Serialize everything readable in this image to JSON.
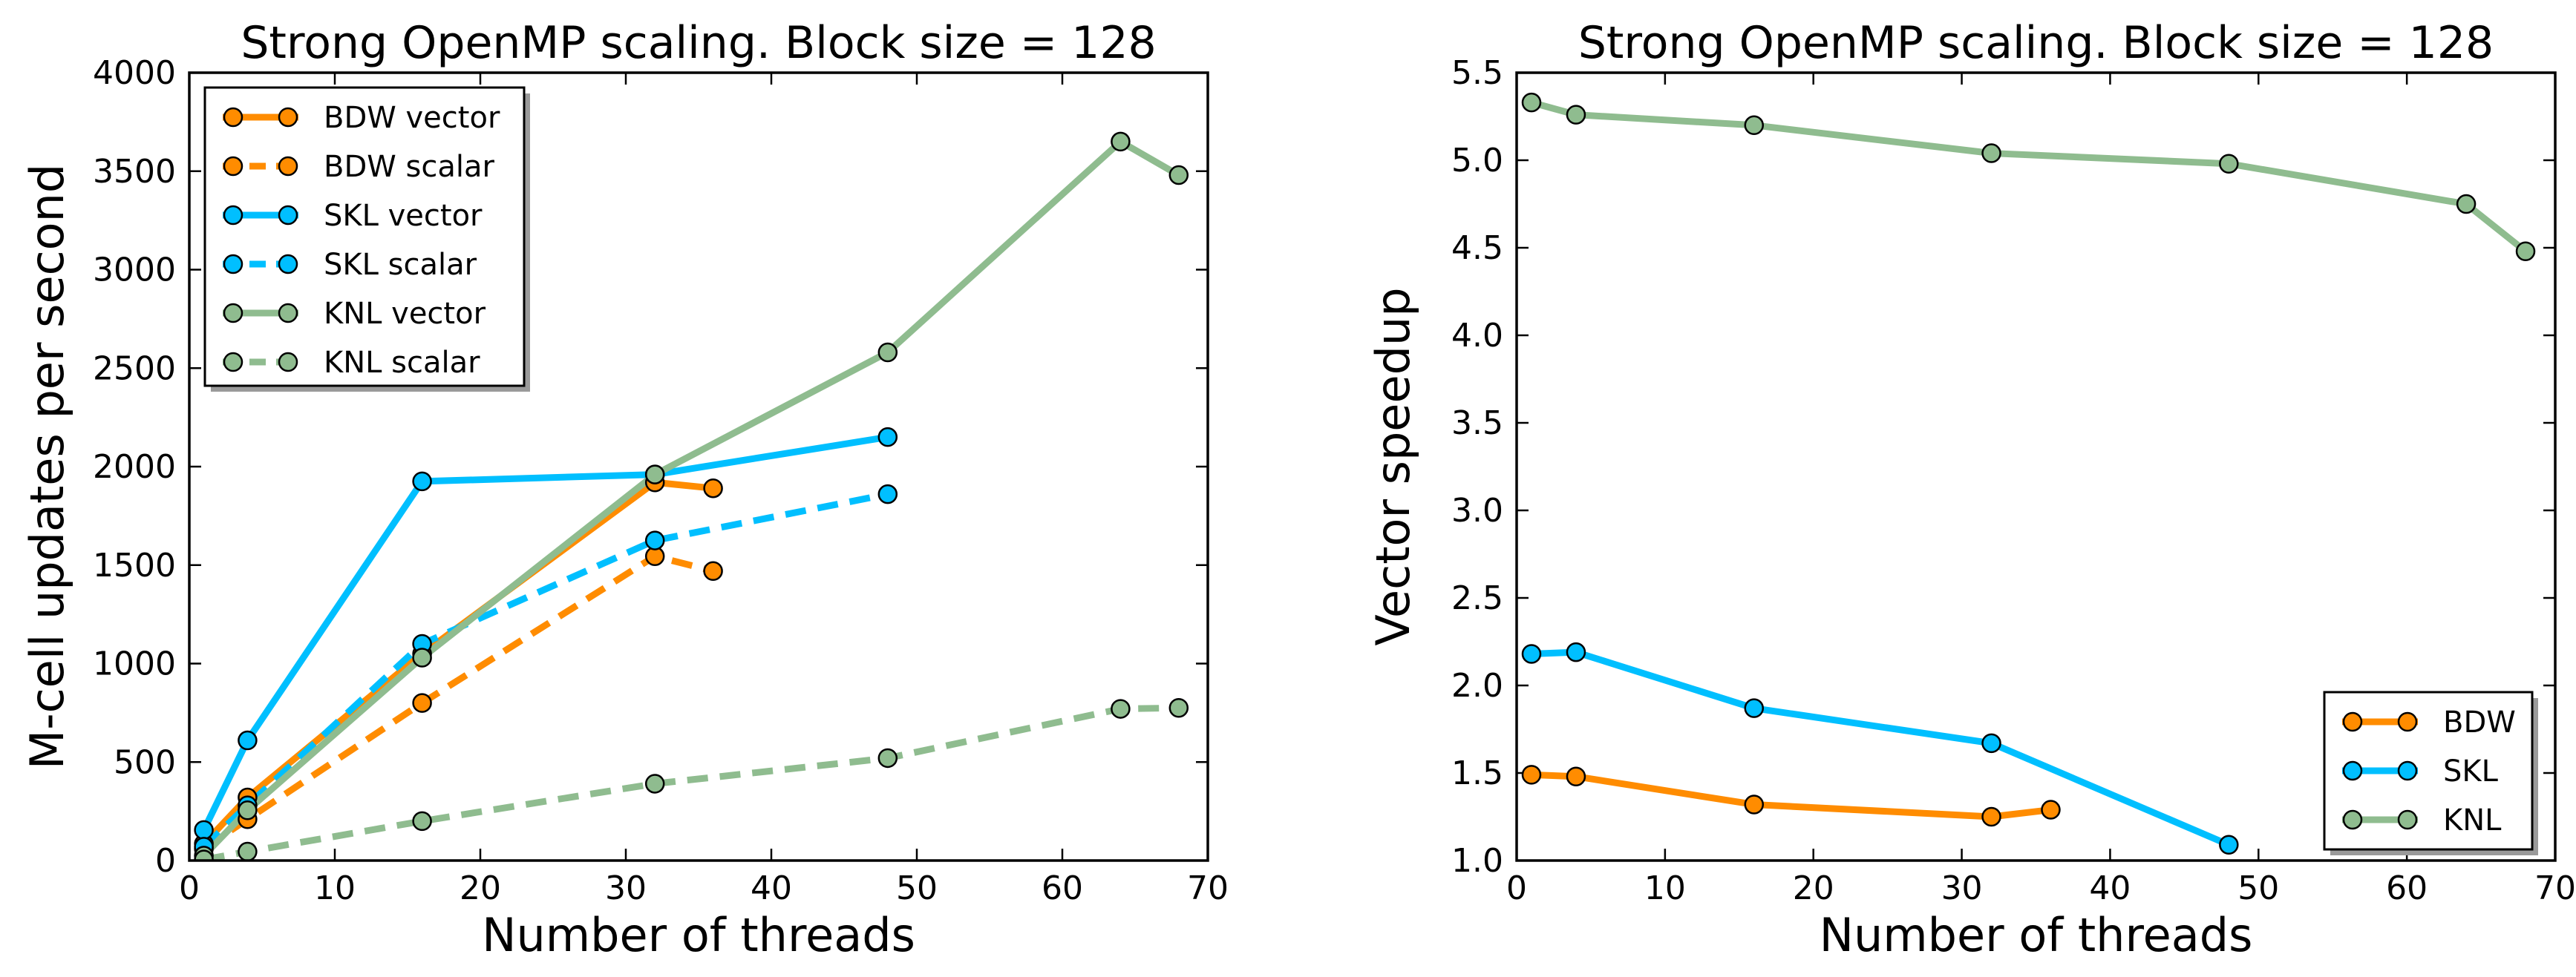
{
  "chart_data": [
    {
      "type": "line",
      "title": "Strong OpenMP scaling.  Block size = 128",
      "xlabel": "Number of threads",
      "ylabel": "M-cell updates per second",
      "xlim": [
        0,
        70
      ],
      "ylim": [
        0,
        4000
      ],
      "xticks": [
        0,
        10,
        20,
        30,
        40,
        50,
        60,
        70
      ],
      "yticks": [
        0,
        500,
        1000,
        1500,
        2000,
        2500,
        3000,
        3500,
        4000
      ],
      "legend_position": "top-left",
      "series": [
        {
          "name": "BDW vector",
          "color": "#ff8c00",
          "style": "solid",
          "x": [
            1,
            4,
            16,
            32,
            36
          ],
          "y": [
            85,
            320,
            1050,
            1920,
            1890
          ]
        },
        {
          "name": "BDW scalar",
          "color": "#ff8c00",
          "style": "dashed",
          "x": [
            1,
            4,
            16,
            32,
            36
          ],
          "y": [
            60,
            210,
            800,
            1545,
            1470
          ]
        },
        {
          "name": "SKL vector",
          "color": "#00bfff",
          "style": "solid",
          "x": [
            1,
            4,
            16,
            32,
            48
          ],
          "y": [
            155,
            610,
            1925,
            1960,
            2150
          ]
        },
        {
          "name": "SKL scalar",
          "color": "#00bfff",
          "style": "dashed",
          "x": [
            1,
            4,
            16,
            32,
            48
          ],
          "y": [
            70,
            280,
            1100,
            1625,
            1860
          ]
        },
        {
          "name": "KNL vector",
          "color": "#8fbc8f",
          "style": "solid",
          "x": [
            1,
            4,
            16,
            32,
            48,
            64,
            68
          ],
          "y": [
            25,
            255,
            1030,
            1960,
            2580,
            3650,
            3480
          ]
        },
        {
          "name": "KNL scalar",
          "color": "#8fbc8f",
          "style": "dashed",
          "x": [
            1,
            4,
            16,
            32,
            48,
            64,
            68
          ],
          "y": [
            5,
            45,
            200,
            390,
            520,
            770,
            775
          ]
        }
      ]
    },
    {
      "type": "line",
      "title": "Strong OpenMP scaling.  Block size = 128",
      "xlabel": "Number of threads",
      "ylabel": "Vector speedup",
      "xlim": [
        0,
        70
      ],
      "ylim": [
        1.0,
        5.5
      ],
      "xticks": [
        0,
        10,
        20,
        30,
        40,
        50,
        60,
        70
      ],
      "yticks": [
        1.0,
        1.5,
        2.0,
        2.5,
        3.0,
        3.5,
        4.0,
        4.5,
        5.0,
        5.5
      ],
      "legend_position": "bottom-right",
      "series": [
        {
          "name": "BDW",
          "color": "#ff8c00",
          "style": "solid",
          "x": [
            1,
            4,
            16,
            32,
            36
          ],
          "y": [
            1.49,
            1.48,
            1.32,
            1.25,
            1.29
          ]
        },
        {
          "name": "SKL",
          "color": "#00bfff",
          "style": "solid",
          "x": [
            1,
            4,
            16,
            32,
            48
          ],
          "y": [
            2.18,
            2.19,
            1.87,
            1.67,
            1.09
          ]
        },
        {
          "name": "KNL",
          "color": "#8fbc8f",
          "style": "solid",
          "x": [
            1,
            4,
            16,
            32,
            48,
            64,
            68
          ],
          "y": [
            5.33,
            5.26,
            5.2,
            5.04,
            4.98,
            4.75,
            4.48
          ]
        }
      ]
    }
  ]
}
